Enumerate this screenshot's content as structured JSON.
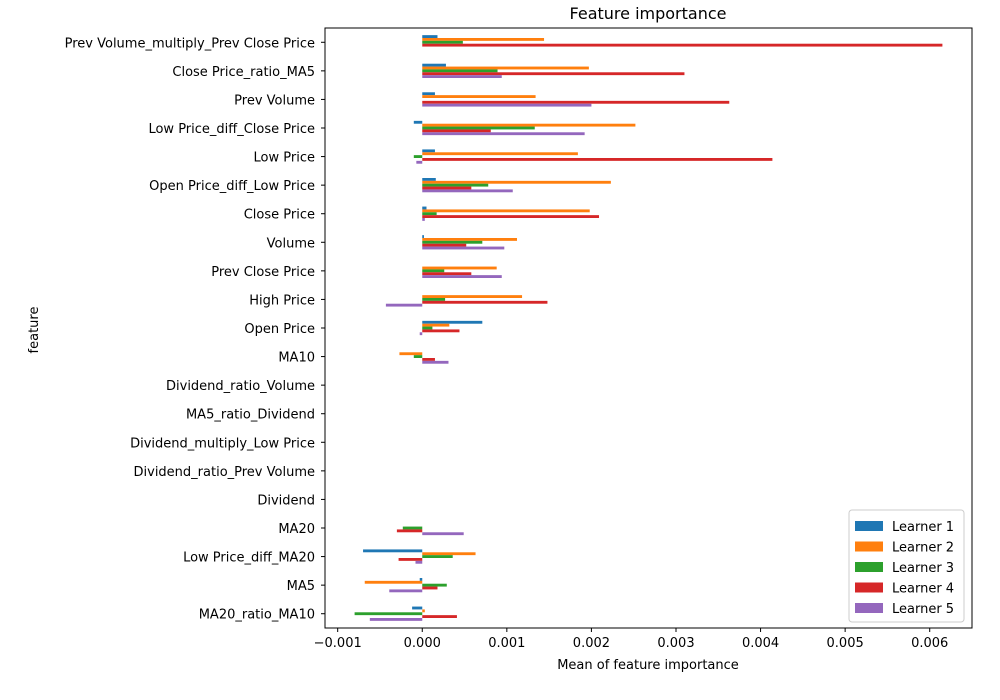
{
  "chart_data": {
    "type": "bar",
    "orientation": "horizontal",
    "title": "Feature importance",
    "xlabel": "Mean of feature importance",
    "ylabel": "feature",
    "xlim": [
      -0.00115,
      0.0065
    ],
    "xticks": [
      -0.001,
      0.0,
      0.001,
      0.002,
      0.003,
      0.004,
      0.005,
      0.006
    ],
    "xtick_labels": [
      "−0.001",
      "0.000",
      "0.001",
      "0.002",
      "0.003",
      "0.004",
      "0.005",
      "0.006"
    ],
    "grid": false,
    "legend_position": "lower-right",
    "categories": [
      "Prev Volume_multiply_Prev Close Price",
      "Close Price_ratio_MA5",
      "Prev Volume",
      "Low Price_diff_Close Price",
      "Low Price",
      "Open Price_diff_Low Price",
      "Close Price",
      "Volume",
      "Prev Close Price",
      "High Price",
      "Open Price",
      "MA10",
      "Dividend_ratio_Volume",
      "MA5_ratio_Dividend",
      "Dividend_multiply_Low Price",
      "Dividend_ratio_Prev Volume",
      "Dividend",
      "MA20",
      "Low Price_diff_MA20",
      "MA5",
      "MA20_ratio_MA10"
    ],
    "series": [
      {
        "name": "Learner 1",
        "color": "#1f77b4",
        "values": [
          0.00018,
          0.00028,
          0.00015,
          -0.0001,
          0.00015,
          0.00016,
          5e-05,
          2e-05,
          0.0,
          0.0,
          0.00071,
          0.0,
          0.0,
          0.0,
          0.0,
          0.0,
          0.0,
          0.0,
          -0.0007,
          -3e-05,
          -0.00012
        ]
      },
      {
        "name": "Learner 2",
        "color": "#ff7f0e",
        "values": [
          0.00144,
          0.00197,
          0.00134,
          0.00252,
          0.00184,
          0.00223,
          0.00198,
          0.00112,
          0.00088,
          0.00118,
          0.00032,
          -0.00027,
          0.0,
          0.0,
          0.0,
          0.0,
          0.0,
          0.0,
          0.00063,
          -0.00068,
          3e-05
        ]
      },
      {
        "name": "Learner 3",
        "color": "#2ca02c",
        "values": [
          0.00048,
          0.00089,
          0.0,
          0.00133,
          -0.0001,
          0.00078,
          0.00017,
          0.00071,
          0.00026,
          0.00027,
          0.00012,
          -0.0001,
          0.0,
          0.0,
          0.0,
          0.0,
          0.0,
          -0.00023,
          0.00036,
          0.00029,
          -0.0008
        ]
      },
      {
        "name": "Learner 4",
        "color": "#d62728",
        "values": [
          0.00615,
          0.0031,
          0.00363,
          0.00081,
          0.00414,
          0.00058,
          0.00209,
          0.00052,
          0.00058,
          0.00148,
          0.00044,
          0.00015,
          0.0,
          0.0,
          0.0,
          0.0,
          0.0,
          -0.0003,
          -0.00028,
          0.00018,
          0.00041
        ]
      },
      {
        "name": "Learner 5",
        "color": "#9467bd",
        "values": [
          0.0,
          0.00094,
          0.002,
          0.00192,
          -7e-05,
          0.00107,
          3e-05,
          0.00097,
          0.00094,
          -0.00043,
          -3e-05,
          0.00031,
          0.0,
          0.0,
          0.0,
          0.0,
          0.0,
          0.00049,
          -8e-05,
          -0.00039,
          -0.00062
        ]
      }
    ]
  }
}
